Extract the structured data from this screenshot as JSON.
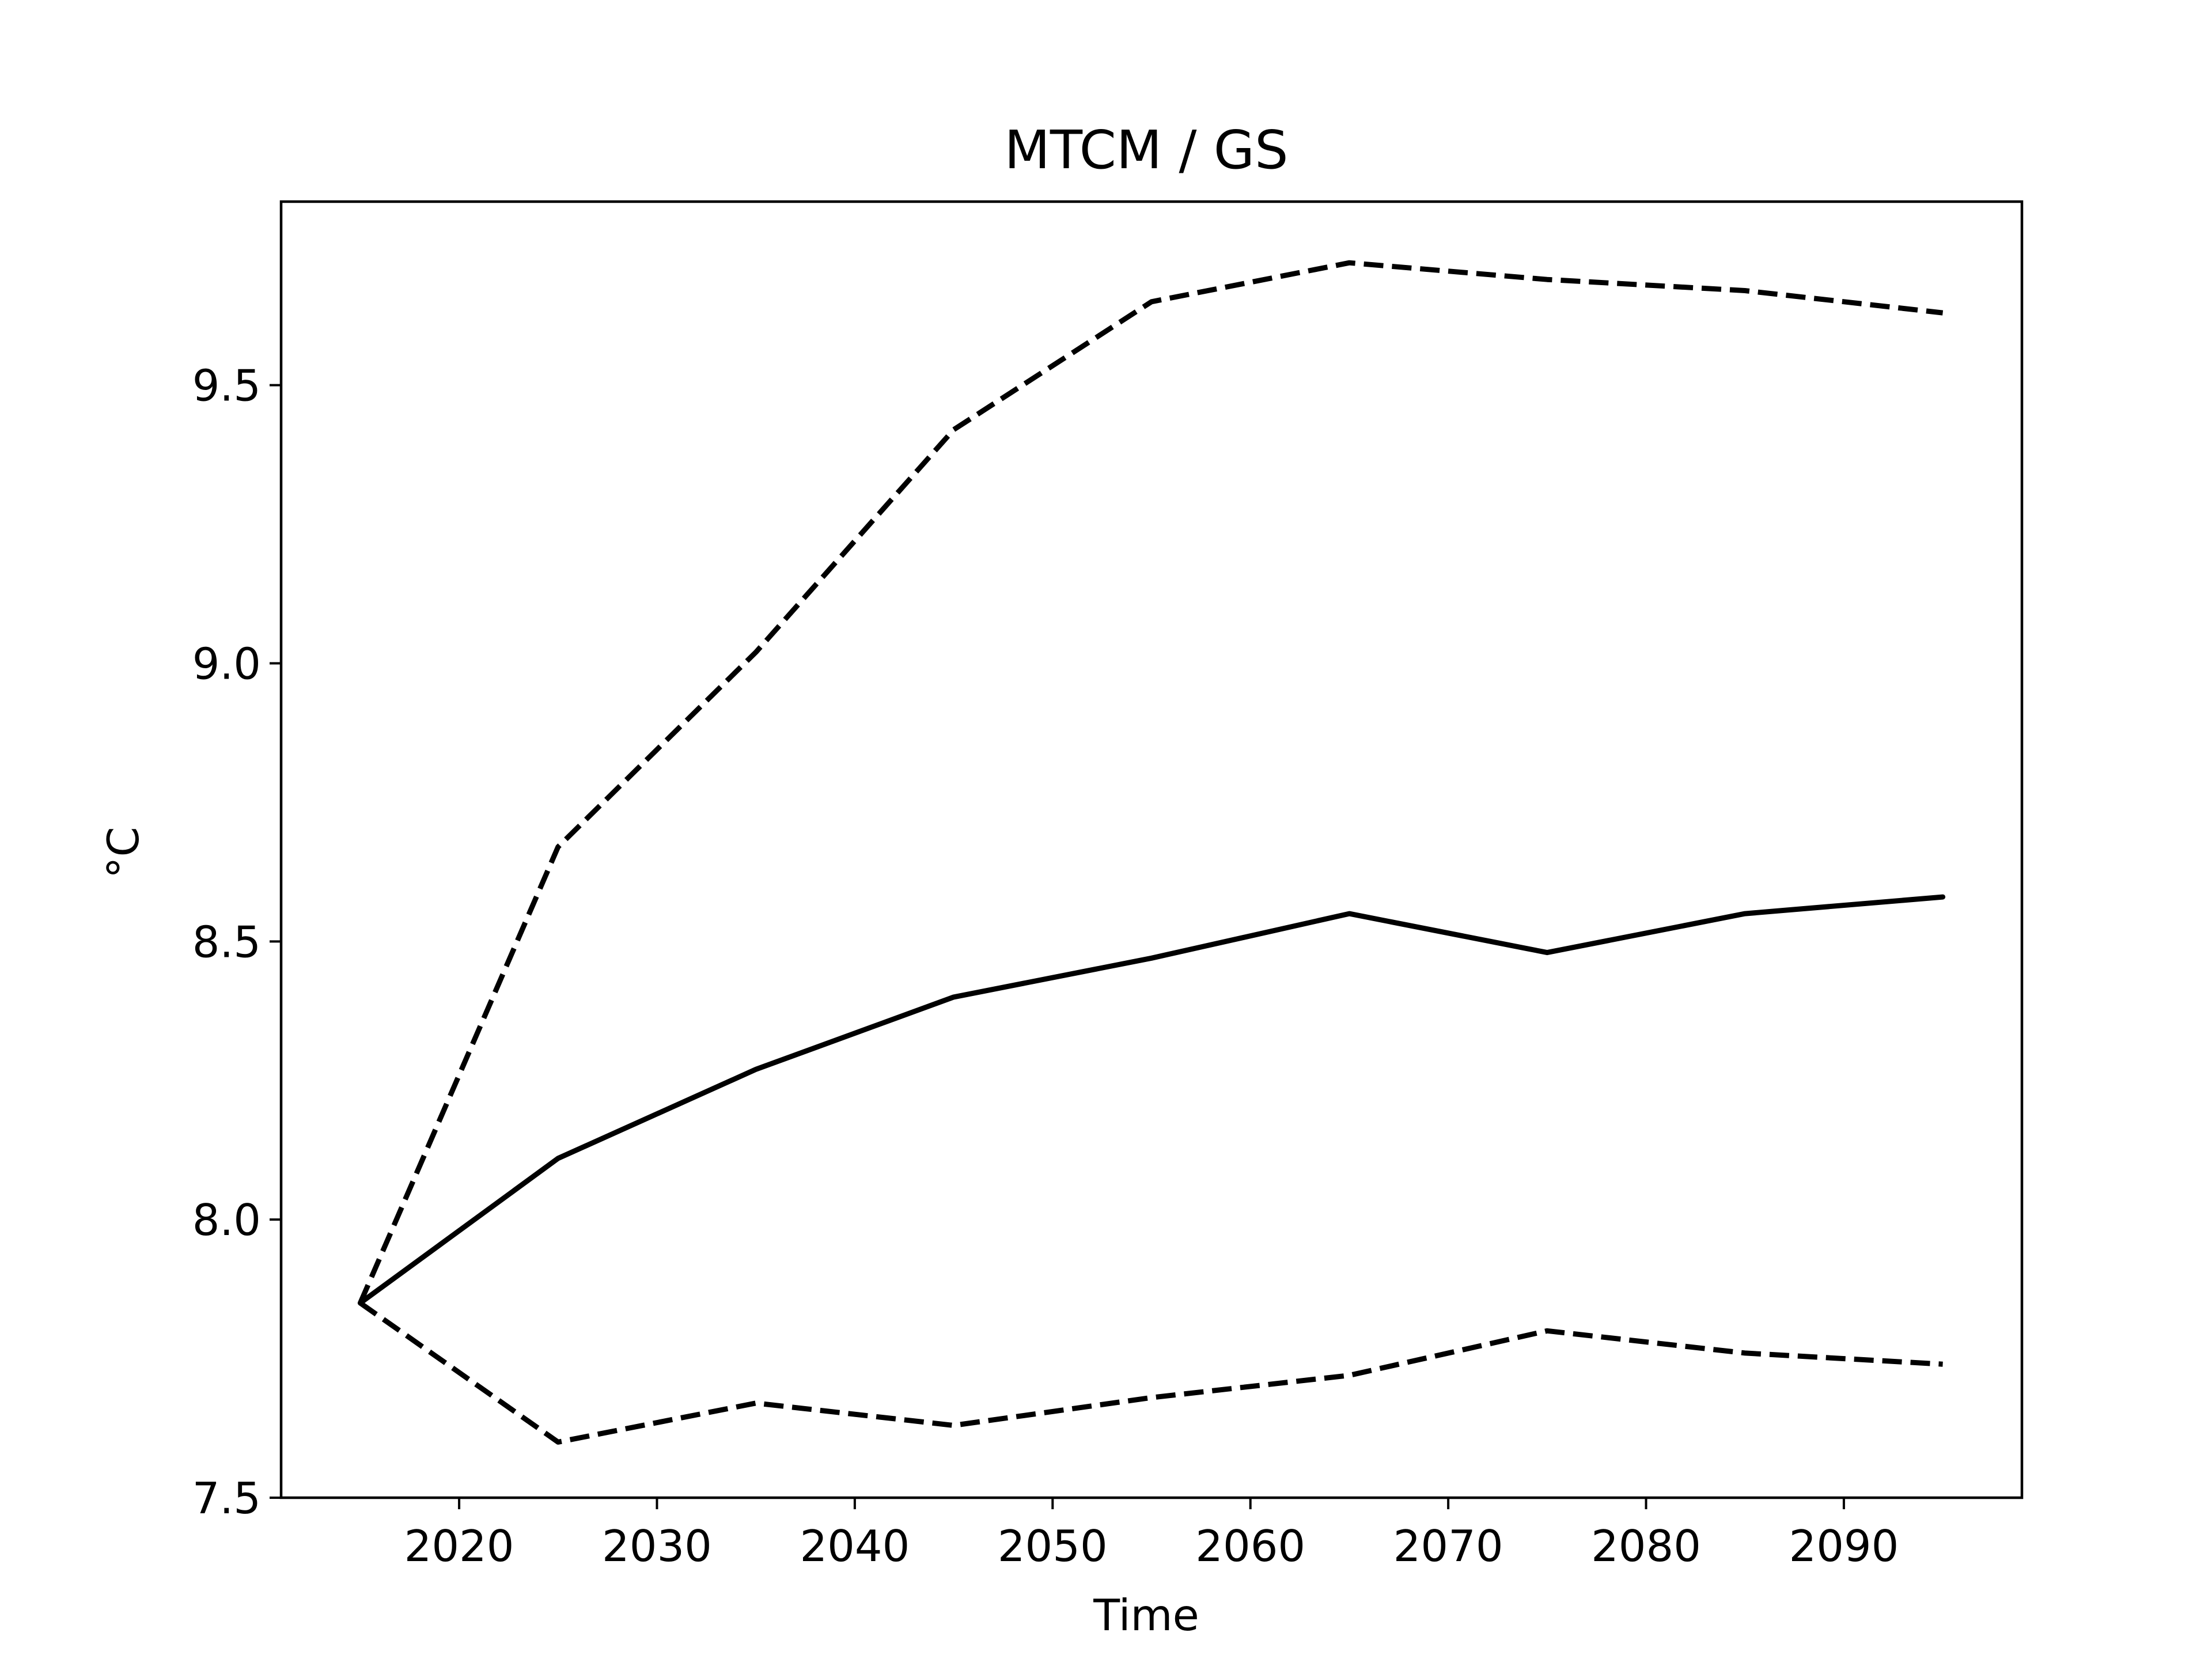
{
  "chart_data": {
    "type": "line",
    "title": "MTCM / GS",
    "xlabel": "Time",
    "ylabel": "°C",
    "x": [
      2015,
      2025,
      2035,
      2045,
      2055,
      2065,
      2075,
      2085,
      2095
    ],
    "xlim": [
      2011,
      2099
    ],
    "ylim": [
      7.5,
      9.83
    ],
    "xticks": [
      2020,
      2030,
      2040,
      2050,
      2060,
      2070,
      2080,
      2090
    ],
    "xtick_labels": [
      "2020",
      "2030",
      "2040",
      "2050",
      "2060",
      "2070",
      "2080",
      "2090"
    ],
    "yticks": [
      7.5,
      8.0,
      8.5,
      9.0,
      9.5
    ],
    "ytick_labels": [
      "7.5",
      "8.0",
      "8.5",
      "9.0",
      "9.5"
    ],
    "grid": false,
    "series": [
      {
        "style": "solid",
        "color": "#000000",
        "values": [
          7.85,
          8.11,
          8.27,
          8.4,
          8.47,
          8.55,
          8.48,
          8.55,
          8.58
        ]
      },
      {
        "style": "dashed",
        "color": "#000000",
        "values": [
          7.85,
          8.67,
          9.02,
          9.42,
          9.65,
          9.72,
          9.69,
          9.67,
          9.63
        ]
      },
      {
        "style": "dashed",
        "color": "#000000",
        "values": [
          7.85,
          7.6,
          7.67,
          7.63,
          7.68,
          7.72,
          7.8,
          7.76,
          7.74
        ]
      }
    ]
  }
}
